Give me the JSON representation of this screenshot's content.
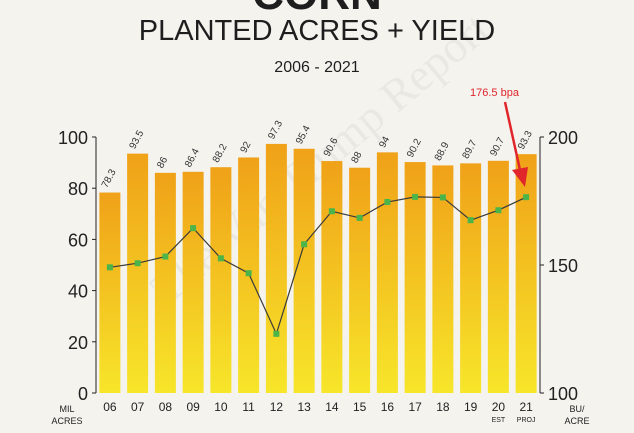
{
  "title_partial": "CORN",
  "title": "PLANTED ACRES + YIELD",
  "subtitle": "2006 - 2021",
  "watermark": "The Van Trump Report",
  "callout": "176.5 bpa",
  "colors": {
    "bar_top": "#f0a118",
    "bar_bottom": "#f7e62a",
    "line": "#3a3a3a",
    "marker": "#4bb54a",
    "callout": "#e0252b",
    "axis": "#222222"
  },
  "chart_data": {
    "type": "bar",
    "title": "PLANTED ACRES + YIELD",
    "subtitle": "2006 - 2021",
    "categories": [
      "06",
      "07",
      "08",
      "09",
      "10",
      "11",
      "12",
      "13",
      "14",
      "15",
      "16",
      "17",
      "18",
      "19",
      "20",
      "21"
    ],
    "category_sublabels": [
      "",
      "",
      "",
      "",
      "",
      "",
      "",
      "",
      "",
      "",
      "",
      "",
      "",
      "",
      "EST",
      "PROJ"
    ],
    "series": [
      {
        "axis": "left",
        "values": [
          78.3,
          93.5,
          86,
          86.4,
          88.2,
          92,
          97.3,
          95.4,
          90.6,
          88,
          94,
          90.2,
          88.9,
          89.7,
          90.7,
          93.3
        ],
        "data_labels": [
          "78.3",
          "93.5",
          "86",
          "86.4",
          "88.2",
          "92",
          "97.3",
          "95.4",
          "90.6",
          "88",
          "94",
          "90.2",
          "88.9",
          "89.7",
          "90.7",
          "93.3"
        ]
      },
      {
        "axis": "right",
        "type": "line",
        "values": [
          149.1,
          150.7,
          153.3,
          164.4,
          152.6,
          146.8,
          123.1,
          158.1,
          171,
          168.4,
          174.6,
          176.6,
          176.4,
          167.5,
          171.4,
          176.5
        ]
      }
    ],
    "y_left": {
      "label": "MIL ACRES",
      "range": [
        0,
        100
      ],
      "ticks": [
        0,
        20,
        40,
        60,
        80,
        100
      ]
    },
    "y_right": {
      "label": "BU/ ACRE",
      "range": [
        100,
        200
      ],
      "ticks": [
        100,
        150,
        200
      ]
    },
    "grid": false,
    "legend": "none"
  }
}
